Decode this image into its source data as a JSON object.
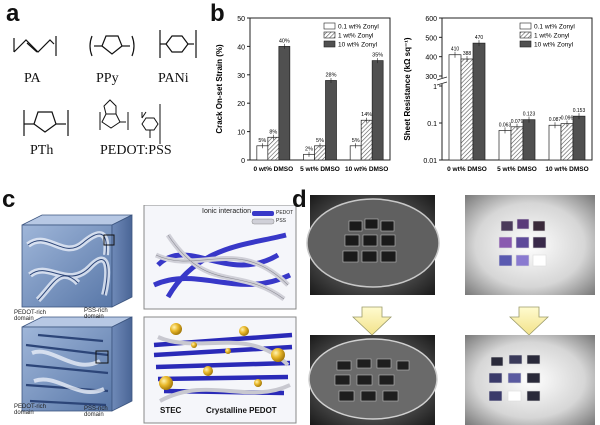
{
  "panels": {
    "a": {
      "letter": "a",
      "polymers": [
        {
          "label": "PA"
        },
        {
          "label": "PPy"
        },
        {
          "label": "PANi"
        },
        {
          "label": "PTh"
        },
        {
          "label": "PEDOT:PSS"
        }
      ],
      "subscripts": {
        "n": "n"
      }
    },
    "b": {
      "letter": "b"
    },
    "c": {
      "letter": "c",
      "top": {
        "annotation_ionic": "Ionic interaction",
        "annotation_pedot": "PEDOT",
        "annotation_pss": "PSS",
        "domain_left": "PEDOT-rich domain",
        "domain_right": "PSS-rich domain"
      },
      "bottom": {
        "domain_left": "PEDOT-rich domain",
        "domain_right": "PSS-rich domain",
        "label_stec": "STEC",
        "label_crystalline": "Crystalline PEDOT"
      }
    },
    "d": {
      "letter": "d"
    }
  },
  "chart_data": [
    {
      "type": "bar",
      "ylabel": "Crack On-set Strain (%)",
      "categories": [
        "0 wt% DMSO",
        "5 wt% DMSO",
        "10 wt% DMSO"
      ],
      "ylim": [
        0,
        50
      ],
      "yticks": [
        "0",
        "10",
        "20",
        "30",
        "40",
        "50"
      ],
      "legend_placement": "top-right",
      "series": [
        {
          "name": "0.1 wt% Zonyl",
          "values": [
            5,
            2,
            5
          ],
          "labels": [
            "5%",
            "2%",
            "5%"
          ],
          "fill": "#ffffff"
        },
        {
          "name": "1 wt% Zonyl",
          "values": [
            8,
            5,
            14
          ],
          "labels": [
            "8%",
            "5%",
            "14%"
          ],
          "fill": "hatch"
        },
        {
          "name": "10 wt% Zonyl",
          "values": [
            40,
            28,
            35
          ],
          "labels": [
            "40%",
            "28%",
            "35%"
          ],
          "fill": "#505050"
        }
      ]
    },
    {
      "type": "bar",
      "ylabel": "Sheet Resistance (kΩ sq⁻¹)",
      "categories": [
        "0 wt% DMSO",
        "5 wt% DMSO",
        "10 wt% DMSO"
      ],
      "ylim": [
        0.01,
        600
      ],
      "yscale": "broken: linear 300–600 / log 0.01–1",
      "yticks_top": [
        "300",
        "400",
        "500",
        "600"
      ],
      "yticks_bottom": [
        "0.01",
        "0.1",
        "1"
      ],
      "legend_placement": "top-right",
      "series": [
        {
          "name": "0.1 wt% Zonyl",
          "values": [
            410,
            0.063,
            0.087
          ],
          "labels": [
            "410",
            "0.063",
            "0.087"
          ],
          "fill": "#ffffff"
        },
        {
          "name": "1 wt% Zonyl",
          "values": [
            388,
            0.079,
            0.096
          ],
          "labels": [
            "388",
            "0.079",
            "0.096"
          ],
          "fill": "hatch"
        },
        {
          "name": "10 wt% Zonyl",
          "values": [
            470,
            0.123,
            0.153
          ],
          "labels": [
            "470",
            "0.123",
            "0.153"
          ],
          "fill": "#505050"
        }
      ]
    }
  ]
}
